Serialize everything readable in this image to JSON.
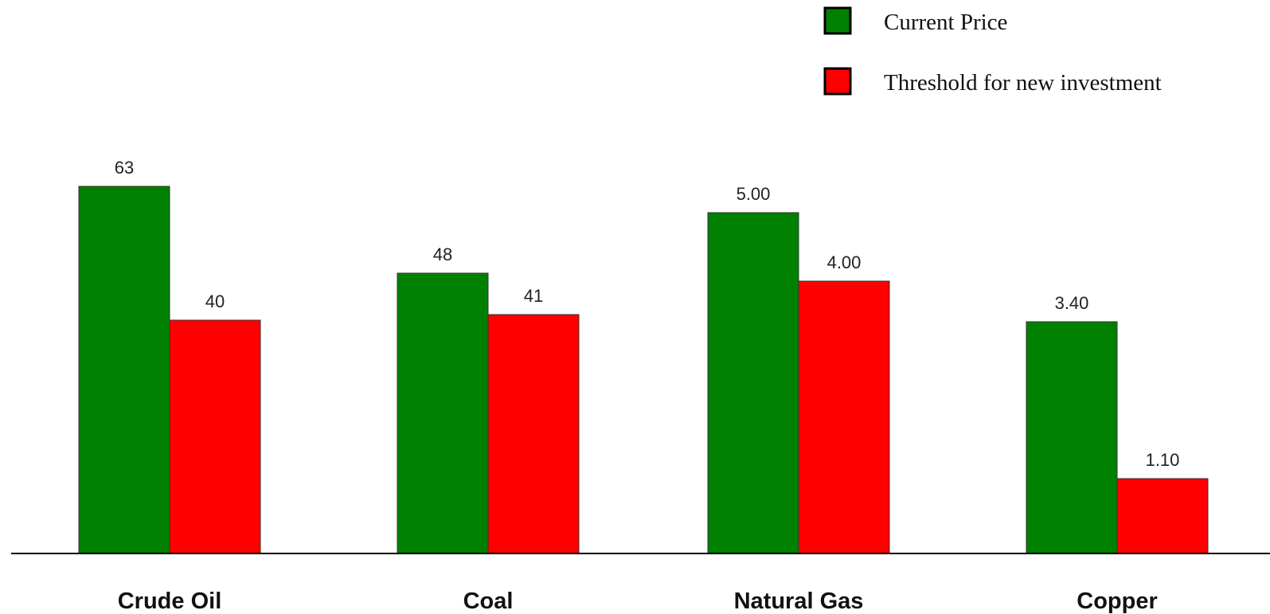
{
  "chart_data": {
    "type": "bar",
    "categories": [
      "Crude Oil",
      "Coal",
      "Natural Gas",
      "Copper"
    ],
    "series": [
      {
        "name": "Current Price",
        "color": "#008000",
        "values": [
          63,
          48,
          5.0,
          3.4
        ],
        "labels": [
          "63",
          "48",
          "5.00",
          "3.40"
        ]
      },
      {
        "name": "Threshold for new investment",
        "color": "#ff0000",
        "values": [
          40,
          41,
          4.0,
          1.1
        ],
        "labels": [
          "40",
          "41",
          "4.00",
          "1.10"
        ]
      }
    ],
    "legend_position": "top-right",
    "grid": false,
    "axes_visible": false
  }
}
